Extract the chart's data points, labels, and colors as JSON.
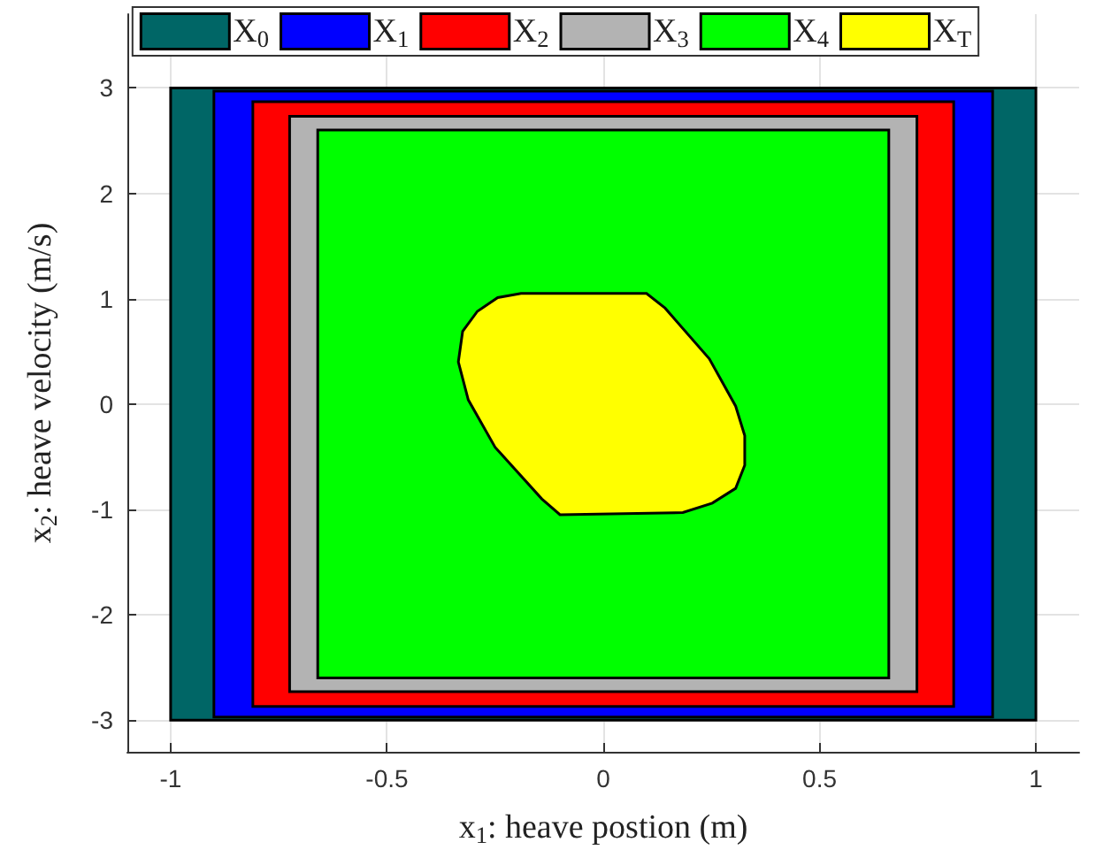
{
  "chart_data": {
    "type": "area",
    "xlabel": "x$_{1}$: heave postion (m)",
    "ylabel": "x$_{2}$: heave velocity (m/s)",
    "xlim": [
      -1.1,
      1.1
    ],
    "xticks": [
      -1,
      -0.5,
      0,
      0.5,
      1
    ],
    "ylim": [
      -3.3,
      3.7
    ],
    "yticks": [
      -3,
      -2,
      -1,
      0,
      1,
      2,
      3
    ],
    "grid": true,
    "legend": "top",
    "series": [
      {
        "name": "X$_{0}$",
        "color": "#006666",
        "x": [
          -1,
          1,
          1,
          -1
        ],
        "values": [
          3,
          3,
          -3,
          -3
        ]
      },
      {
        "name": "X$_{1}$",
        "color": "#0000ff",
        "x": [
          -0.9,
          0.9,
          0.9,
          -0.9
        ],
        "values": [
          2.97,
          2.97,
          -2.97,
          -2.97
        ]
      },
      {
        "name": "X$_{2}$",
        "color": "#ff0000",
        "x": [
          -0.81,
          0.81,
          0.81,
          -0.81
        ],
        "values": [
          2.87,
          2.87,
          -2.87,
          -2.87
        ]
      },
      {
        "name": "X$_{3}$",
        "color": "#b3b3b3",
        "x": [
          -0.725,
          0.725,
          0.725,
          -0.725
        ],
        "values": [
          2.73,
          2.73,
          -2.73,
          -2.73
        ]
      },
      {
        "name": "X$_{4}$",
        "color": "#00ff00",
        "x": [
          -0.66,
          0.66,
          0.66,
          -0.66
        ],
        "values": [
          2.6,
          2.6,
          -2.6,
          -2.6
        ]
      },
      {
        "name": "X$_{T}$",
        "color": "#ffff00",
        "x": [
          -0.19,
          0.1,
          0.143,
          0.245,
          0.306,
          0.327,
          0.327,
          0.306,
          0.252,
          0.184,
          -0.1,
          -0.142,
          -0.25,
          -0.312,
          -0.335,
          -0.325,
          -0.291,
          -0.244
        ],
        "values": [
          1.05,
          1.05,
          0.91,
          0.43,
          -0.02,
          -0.3,
          -0.58,
          -0.8,
          -0.94,
          -1.03,
          -1.05,
          -0.9,
          -0.41,
          0.04,
          0.4,
          0.69,
          0.88,
          1.01
        ]
      }
    ]
  }
}
